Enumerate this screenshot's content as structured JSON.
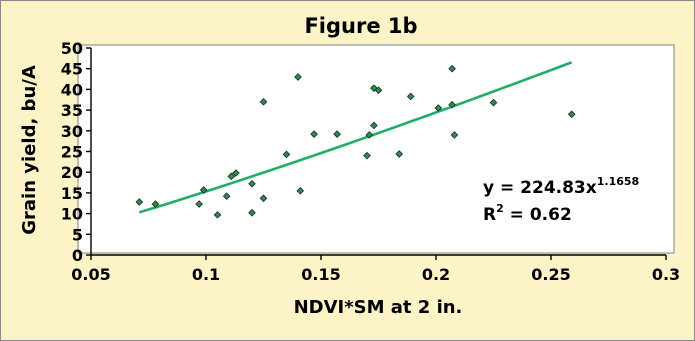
{
  "chart_data": {
    "type": "scatter",
    "title": "Figure 1b",
    "xlabel": "NDVI*SM at 2 in.",
    "ylabel": "Grain yield, bu/A",
    "xlim": [
      0.05,
      0.3
    ],
    "ylim": [
      0,
      50
    ],
    "x_ticks": [
      "0.05",
      "0.1",
      "0.15",
      "0.2",
      "0.25",
      "0.3"
    ],
    "y_ticks": [
      "0",
      "5",
      "10",
      "15",
      "20",
      "25",
      "30",
      "35",
      "40",
      "45",
      "50"
    ],
    "grid": false,
    "legend": "none",
    "points": [
      {
        "x": 0.071,
        "y": 12.8
      },
      {
        "x": 0.078,
        "y": 12.3
      },
      {
        "x": 0.097,
        "y": 12.3
      },
      {
        "x": 0.099,
        "y": 15.7
      },
      {
        "x": 0.105,
        "y": 9.7
      },
      {
        "x": 0.109,
        "y": 14.2
      },
      {
        "x": 0.111,
        "y": 19.0
      },
      {
        "x": 0.113,
        "y": 19.8
      },
      {
        "x": 0.12,
        "y": 17.2
      },
      {
        "x": 0.12,
        "y": 10.2
      },
      {
        "x": 0.125,
        "y": 37.0
      },
      {
        "x": 0.125,
        "y": 13.7
      },
      {
        "x": 0.135,
        "y": 24.3
      },
      {
        "x": 0.14,
        "y": 43.0
      },
      {
        "x": 0.141,
        "y": 15.5
      },
      {
        "x": 0.147,
        "y": 29.2
      },
      {
        "x": 0.157,
        "y": 29.2
      },
      {
        "x": 0.17,
        "y": 24.0
      },
      {
        "x": 0.171,
        "y": 29.0
      },
      {
        "x": 0.173,
        "y": 31.3
      },
      {
        "x": 0.173,
        "y": 40.3
      },
      {
        "x": 0.175,
        "y": 39.8
      },
      {
        "x": 0.184,
        "y": 24.4
      },
      {
        "x": 0.189,
        "y": 38.3
      },
      {
        "x": 0.201,
        "y": 35.5
      },
      {
        "x": 0.207,
        "y": 45.0
      },
      {
        "x": 0.207,
        "y": 36.3
      },
      {
        "x": 0.208,
        "y": 29.0
      },
      {
        "x": 0.225,
        "y": 36.8
      },
      {
        "x": 0.259,
        "y": 34.0
      }
    ],
    "trendline": {
      "type": "power",
      "coefficient": 224.83,
      "exponent": 1.1658,
      "x_range": [
        0.071,
        0.259
      ],
      "equation_prefix": "y = 224.83x",
      "equation_exponent": "1.1658",
      "r2_prefix": "R",
      "r2_exponent": "2",
      "r2_value": " = 0.62"
    },
    "colors": {
      "background": "#fcf4c7",
      "plot_area": "#ffffff",
      "point": "#2e8b57",
      "trendline": "#20ad6a"
    }
  }
}
